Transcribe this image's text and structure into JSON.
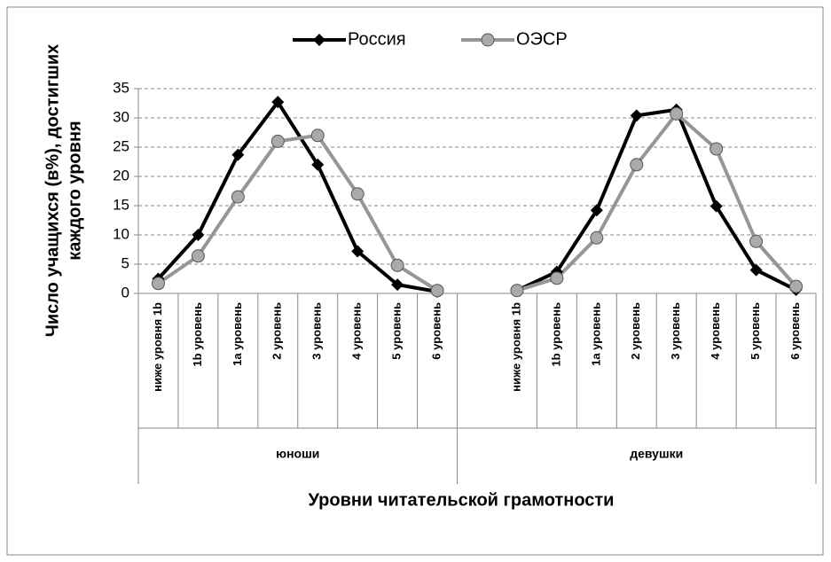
{
  "chart_data": {
    "type": "line",
    "y_label": [
      "Число учащихся (в%), достигших",
      "каждого уровня"
    ],
    "x_label": "Уровни читательской грамотности",
    "categories": [
      "ниже уровня 1b",
      "1b уровень",
      "1a уровень",
      "2 уровень",
      "3 уровень",
      "4 уровень",
      "5 уровень",
      "6 уровень",
      null,
      "ниже уровня 1b",
      "1b уровень",
      "1a уровень",
      "2 уровень",
      "3 уровень",
      "4 уровень",
      "5 уровень",
      "6 уровень"
    ],
    "groups": [
      "юноши",
      "девушки"
    ],
    "series": [
      {
        "name": "Россия",
        "color": "#000000",
        "marker": "diamond",
        "values": [
          2.5,
          10,
          23.7,
          32.7,
          22,
          7.2,
          1.5,
          0.3,
          null,
          0.5,
          3.7,
          14.2,
          30.4,
          31.4,
          14.9,
          4,
          0.6
        ]
      },
      {
        "name": "ОЭСР",
        "color": "#969696",
        "marker": "circle",
        "values": [
          1.7,
          6.4,
          16.5,
          26,
          27,
          17,
          4.8,
          0.5,
          null,
          0.5,
          2.6,
          9.5,
          22,
          30.7,
          24.7,
          8.9,
          1.2
        ]
      }
    ],
    "ylim": [
      0,
      35
    ],
    "yticks": [
      0,
      5,
      10,
      15,
      20,
      25,
      30,
      35
    ],
    "grid": true,
    "legend": "top"
  }
}
